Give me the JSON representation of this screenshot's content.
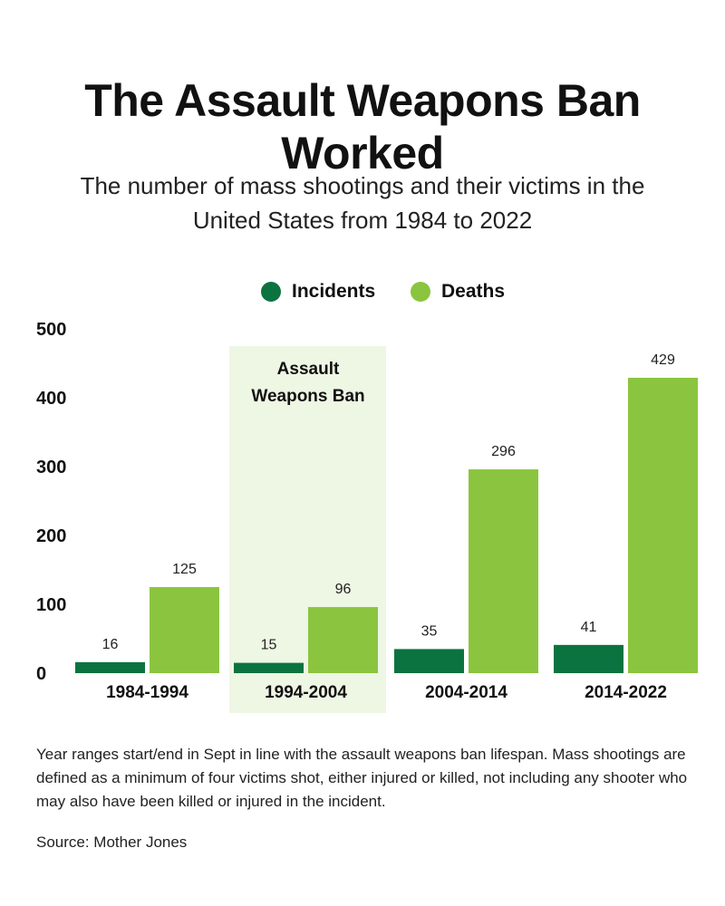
{
  "title": "The Assault Weapons Ban Worked",
  "subtitle": "The number of mass shootings and their victims in the United States from 1984 to 2022",
  "legend": {
    "incidents": "Incidents",
    "deaths": "Deaths"
  },
  "colors": {
    "incidents": "#0b7340",
    "deaths": "#8bc53f",
    "ban_shade": "#eef6e4"
  },
  "chart_data": {
    "type": "bar",
    "title": "The Assault Weapons Ban Worked",
    "subtitle": "The number of mass shootings and their victims in the United States from 1984 to 2022",
    "categories": [
      "1984-1994",
      "1994-2004",
      "2004-2014",
      "2014-2022"
    ],
    "series": [
      {
        "name": "Incidents",
        "values": [
          16,
          15,
          35,
          41
        ]
      },
      {
        "name": "Deaths",
        "values": [
          125,
          96,
          296,
          429
        ]
      }
    ],
    "yticks": [
      0,
      100,
      200,
      300,
      400,
      500
    ],
    "ylim": [
      0,
      500
    ],
    "xlabel": "",
    "ylabel": "",
    "legend": "top-center",
    "grid": false,
    "annotation": {
      "label": "Assault Weapons Ban",
      "line1": "Assault",
      "line2": "Weapons Ban",
      "category": "1994-2004"
    }
  },
  "footnote": "Year ranges start/end in Sept in line with the assault weapons ban lifespan.  Mass shootings are defined as a minimum of four victims shot, either injured or killed, not including any shooter who may also have been killed or injured in the incident.",
  "source": "Source: Mother Jones"
}
